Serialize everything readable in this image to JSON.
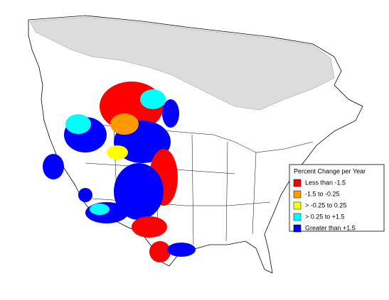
{
  "legend": {
    "title": "Percent Change per Year",
    "items": [
      {
        "label": "Less than -1.5",
        "color": "#ff0000"
      },
      {
        "label": "-1.5 to -0.25",
        "color": "#ff9900"
      },
      {
        "label": "> -0.25 to 0.25",
        "color": "#ffff00"
      },
      {
        "label": "> 0.25 to +1.5",
        "color": "#00ffff"
      },
      {
        "label": "Greater than +1.5",
        "color": "#0000ff"
      }
    ]
  }
}
